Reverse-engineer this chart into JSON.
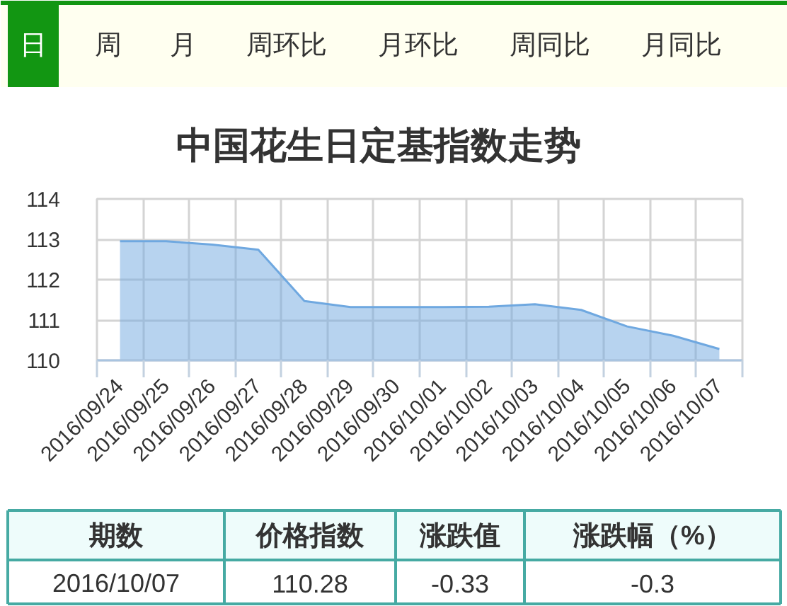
{
  "chart_data": [
    {
      "type": "other",
      "categories": [
        "日",
        "周",
        "月",
        "周环比",
        "月环比",
        "周同比",
        "月同比"
      ],
      "colors": [
        "#129612",
        "#fffff0",
        "#fffff0",
        "#fffff0",
        "#fffff0",
        "#fffff0",
        "#fffff0"
      ]
    },
    {
      "type": "area",
      "title": "中国花生日定基指数走势",
      "categories": [
        "2016/09/24",
        "2016/09/25",
        "2016/09/26",
        "2016/09/27",
        "2016/09/28",
        "2016/09/29",
        "2016/09/30",
        "2016/10/01",
        "2016/10/02",
        "2016/10/03",
        "2016/10/04",
        "2016/10/05",
        "2016/10/06",
        "2016/10/07"
      ],
      "series": [
        {
          "color": "#6fa8e0",
          "values": [
            112.95,
            112.95,
            112.87,
            112.74,
            111.47,
            111.32,
            111.32,
            111.32,
            111.33,
            111.39,
            111.25,
            110.84,
            110.61,
            110.28
          ]
        }
      ],
      "ylim": [
        110,
        114
      ],
      "yticks": [
        110,
        111,
        112,
        113,
        114
      ],
      "grid": true
    },
    {
      "type": "other",
      "categories": [
        "期数",
        "价格指数",
        "涨跌值",
        "涨跌幅（%）"
      ],
      "annotations": [
        "2016/10/07",
        "110.28",
        "-0.33",
        "-0.3"
      ]
    }
  ]
}
